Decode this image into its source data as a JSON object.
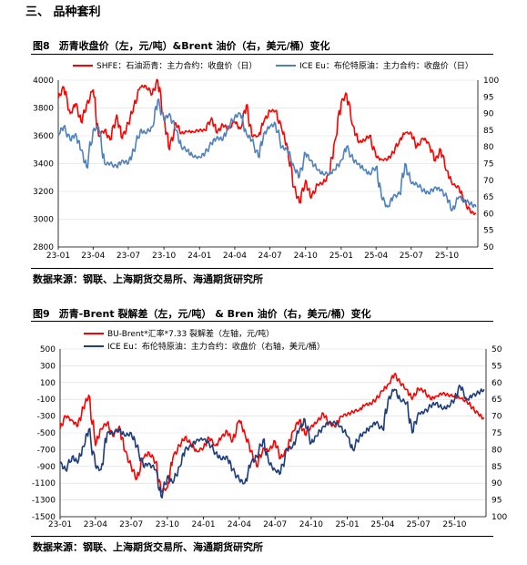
{
  "section_title": "三、 品种套利",
  "colors": {
    "red": "#ff0000",
    "blue1": "#4f81bd",
    "blue2": "#1f3d7a",
    "grid": "#d9d9d9"
  },
  "chart_data": [
    {
      "type": "line",
      "fig_label": "图8",
      "title": "沥青收盘价（左，元/吨）&Brent 油价（右，美元/桶）变化",
      "source": "数据来源：钢联、上海期货交易所、海通期货研究所",
      "x_ticks": [
        "23-01",
        "23-04",
        "23-07",
        "23-10",
        "24-01",
        "24-04",
        "24-07",
        "24-10",
        "25-01",
        "25-04",
        "25-07",
        "25-10"
      ],
      "x_range": [
        "2023-01-01",
        "2025-12-20"
      ],
      "y_left": {
        "ticks": [
          2800,
          3000,
          3200,
          3400,
          3600,
          3800,
          4000
        ],
        "range": [
          2800,
          4000
        ]
      },
      "y_right": {
        "ticks": [
          50,
          55,
          60,
          65,
          70,
          75,
          80,
          85,
          90,
          95,
          100
        ],
        "range": [
          50,
          100
        ]
      },
      "series": [
        {
          "name": "SHFE：石油沥青：主力合约：收盘价（日）",
          "axis": "left",
          "color": "#ff0000",
          "x": [
            "2023-01-01",
            "2023-01-15",
            "2023-02-01",
            "2023-02-15",
            "2023-03-01",
            "2023-03-15",
            "2023-04-01",
            "2023-04-15",
            "2023-05-01",
            "2023-05-15",
            "2023-06-01",
            "2023-06-15",
            "2023-07-01",
            "2023-07-15",
            "2023-08-01",
            "2023-08-15",
            "2023-09-01",
            "2023-09-15",
            "2023-10-01",
            "2023-10-15",
            "2023-11-01",
            "2023-11-15",
            "2023-12-01",
            "2023-12-15",
            "2024-01-01",
            "2024-01-15",
            "2024-02-01",
            "2024-02-15",
            "2024-03-01",
            "2024-03-15",
            "2024-04-01",
            "2024-04-15",
            "2024-05-01",
            "2024-05-15",
            "2024-06-01",
            "2024-06-15",
            "2024-07-01",
            "2024-07-15",
            "2024-08-01",
            "2024-08-15",
            "2024-09-01",
            "2024-09-15",
            "2024-10-01",
            "2024-10-15",
            "2024-11-01",
            "2024-11-15",
            "2024-12-01",
            "2024-12-15",
            "2025-01-01",
            "2025-01-15",
            "2025-02-01",
            "2025-02-15",
            "2025-03-01",
            "2025-03-15",
            "2025-04-01",
            "2025-04-15",
            "2025-05-01",
            "2025-05-15",
            "2025-06-01",
            "2025-06-15",
            "2025-07-01",
            "2025-07-15",
            "2025-08-01",
            "2025-08-15",
            "2025-09-01",
            "2025-09-15",
            "2025-10-01",
            "2025-10-15",
            "2025-11-01",
            "2025-11-15",
            "2025-12-01",
            "2025-12-15"
          ],
          "y": [
            3870,
            3950,
            3760,
            3830,
            3700,
            3820,
            3930,
            3600,
            3640,
            3570,
            3750,
            3580,
            3690,
            3810,
            3950,
            3960,
            3900,
            4000,
            3730,
            3500,
            3690,
            3620,
            3630,
            3630,
            3640,
            3640,
            3730,
            3620,
            3680,
            3650,
            3700,
            3650,
            3820,
            3600,
            3600,
            3700,
            3780,
            3780,
            3640,
            3520,
            3230,
            3120,
            3280,
            3150,
            3250,
            3260,
            3320,
            3560,
            3840,
            3900,
            3670,
            3550,
            3570,
            3600,
            3450,
            3430,
            3430,
            3480,
            3570,
            3620,
            3620,
            3520,
            3580,
            3550,
            3420,
            3500,
            3350,
            3250,
            3230,
            3130,
            3050,
            3040
          ]
        },
        {
          "name": "ICE Eu：布伦特原油：主力合约：收盘价（日）",
          "axis": "right",
          "color": "#4f81bd",
          "x": [
            "2023-01-01",
            "2023-01-15",
            "2023-02-01",
            "2023-02-15",
            "2023-03-01",
            "2023-03-15",
            "2023-04-01",
            "2023-04-15",
            "2023-05-01",
            "2023-05-15",
            "2023-06-01",
            "2023-06-15",
            "2023-07-01",
            "2023-07-15",
            "2023-08-01",
            "2023-08-15",
            "2023-09-01",
            "2023-09-15",
            "2023-10-01",
            "2023-10-15",
            "2023-11-01",
            "2023-11-15",
            "2023-12-01",
            "2023-12-15",
            "2024-01-01",
            "2024-01-15",
            "2024-02-01",
            "2024-02-15",
            "2024-03-01",
            "2024-03-15",
            "2024-04-01",
            "2024-04-15",
            "2024-05-01",
            "2024-05-15",
            "2024-06-01",
            "2024-06-15",
            "2024-07-01",
            "2024-07-15",
            "2024-08-01",
            "2024-08-15",
            "2024-09-01",
            "2024-09-15",
            "2024-10-01",
            "2024-10-15",
            "2024-11-01",
            "2024-11-15",
            "2024-12-01",
            "2024-12-15",
            "2025-01-01",
            "2025-01-15",
            "2025-02-01",
            "2025-02-15",
            "2025-03-01",
            "2025-03-15",
            "2025-04-01",
            "2025-04-15",
            "2025-05-01",
            "2025-05-15",
            "2025-06-01",
            "2025-06-15",
            "2025-07-01",
            "2025-07-15",
            "2025-08-01",
            "2025-08-15",
            "2025-09-01",
            "2025-09-15",
            "2025-10-01",
            "2025-10-15",
            "2025-11-01",
            "2025-11-15",
            "2025-12-01",
            "2025-12-15"
          ],
          "y": [
            84,
            86,
            82,
            84,
            79,
            74,
            85,
            86,
            75,
            75,
            74,
            76,
            75,
            79,
            85,
            84,
            86,
            94,
            88,
            90,
            85,
            80,
            79,
            77,
            77,
            78,
            81,
            83,
            82,
            86,
            89,
            90,
            84,
            82,
            77,
            84,
            86,
            87,
            80,
            79,
            74,
            71,
            78,
            76,
            73,
            72,
            72,
            73,
            76,
            80,
            76,
            75,
            73,
            72,
            74,
            65,
            62,
            65,
            66,
            75,
            69,
            69,
            67,
            66,
            68,
            67,
            65,
            61,
            65,
            64,
            63,
            62
          ]
        }
      ]
    },
    {
      "type": "line",
      "fig_label": "图9",
      "title": "沥青-Brent 裂解差（左，元/吨） & Bren 油价（右，美元/桶）变化",
      "source": "数据来源：钢联、上海期货交易所、海通期货研究所",
      "x_ticks": [
        "23-01",
        "23-04",
        "23-07",
        "23-10",
        "24-01",
        "24-04",
        "24-07",
        "24-10",
        "25-01",
        "25-04",
        "25-07",
        "25-10"
      ],
      "x_range": [
        "2023-01-01",
        "2025-12-20"
      ],
      "y_left": {
        "ticks": [
          -1500,
          -1300,
          -1100,
          -900,
          -700,
          -500,
          -300,
          -100,
          100,
          300,
          500
        ],
        "range": [
          -1500,
          500
        ]
      },
      "y_right": {
        "ticks": [
          50,
          55,
          60,
          65,
          70,
          75,
          80,
          85,
          90,
          95,
          100
        ],
        "range": [
          100,
          50
        ],
        "reversed": true
      },
      "series": [
        {
          "name": "BU-Brent*汇率*7.33 裂解差（左轴，元/吨）",
          "axis": "left",
          "color": "#ff0000",
          "x": [
            "2023-01-01",
            "2023-01-15",
            "2023-02-01",
            "2023-02-15",
            "2023-03-01",
            "2023-03-15",
            "2023-04-01",
            "2023-04-15",
            "2023-05-01",
            "2023-05-15",
            "2023-06-01",
            "2023-06-15",
            "2023-07-01",
            "2023-07-15",
            "2023-08-01",
            "2023-08-15",
            "2023-09-01",
            "2023-09-15",
            "2023-10-01",
            "2023-10-15",
            "2023-11-01",
            "2023-11-15",
            "2023-12-01",
            "2023-12-15",
            "2024-01-01",
            "2024-01-15",
            "2024-02-01",
            "2024-02-15",
            "2024-03-01",
            "2024-03-15",
            "2024-04-01",
            "2024-04-15",
            "2024-05-01",
            "2024-05-15",
            "2024-06-01",
            "2024-06-15",
            "2024-07-01",
            "2024-07-15",
            "2024-08-01",
            "2024-08-15",
            "2024-09-01",
            "2024-09-15",
            "2024-10-01",
            "2024-10-15",
            "2024-11-01",
            "2024-11-15",
            "2024-12-01",
            "2024-12-15",
            "2025-01-01",
            "2025-01-15",
            "2025-02-01",
            "2025-02-15",
            "2025-03-01",
            "2025-03-15",
            "2025-04-01",
            "2025-04-15",
            "2025-05-01",
            "2025-05-15",
            "2025-06-01",
            "2025-06-15",
            "2025-07-01",
            "2025-07-15",
            "2025-08-01",
            "2025-08-15",
            "2025-09-01",
            "2025-09-15",
            "2025-10-01",
            "2025-10-15",
            "2025-11-01",
            "2025-11-15",
            "2025-12-01",
            "2025-12-15"
          ],
          "y": [
            -450,
            -300,
            -350,
            -420,
            -200,
            -50,
            -650,
            -450,
            -380,
            -540,
            -420,
            -720,
            -900,
            -1050,
            -800,
            -730,
            -850,
            -1200,
            -1150,
            -800,
            -650,
            -550,
            -640,
            -720,
            -680,
            -560,
            -650,
            -560,
            -480,
            -600,
            -350,
            -500,
            -720,
            -900,
            -680,
            -720,
            -600,
            -800,
            -700,
            -480,
            -350,
            -520,
            -420,
            -380,
            -270,
            -380,
            -430,
            -300,
            -280,
            -250,
            -220,
            -170,
            -150,
            -100,
            0,
            80,
            200,
            100,
            20,
            -100,
            30,
            0,
            -100,
            -60,
            -30,
            -50,
            -60,
            -90,
            -120,
            -200,
            -280,
            -330
          ]
        },
        {
          "name": "ICE Eu：布伦特原油：主力合约：收盘价（右轴，美元/桶）",
          "axis": "right",
          "color": "#1f3d7a",
          "x": [
            "2023-01-01",
            "2023-01-15",
            "2023-02-01",
            "2023-02-15",
            "2023-03-01",
            "2023-03-15",
            "2023-04-01",
            "2023-04-15",
            "2023-05-01",
            "2023-05-15",
            "2023-06-01",
            "2023-06-15",
            "2023-07-01",
            "2023-07-15",
            "2023-08-01",
            "2023-08-15",
            "2023-09-01",
            "2023-09-15",
            "2023-10-01",
            "2023-10-15",
            "2023-11-01",
            "2023-11-15",
            "2023-12-01",
            "2023-12-15",
            "2024-01-01",
            "2024-01-15",
            "2024-02-01",
            "2024-02-15",
            "2024-03-01",
            "2024-03-15",
            "2024-04-01",
            "2024-04-15",
            "2024-05-01",
            "2024-05-15",
            "2024-06-01",
            "2024-06-15",
            "2024-07-01",
            "2024-07-15",
            "2024-08-01",
            "2024-08-15",
            "2024-09-01",
            "2024-09-15",
            "2024-10-01",
            "2024-10-15",
            "2024-11-01",
            "2024-11-15",
            "2024-12-01",
            "2024-12-15",
            "2025-01-01",
            "2025-01-15",
            "2025-02-01",
            "2025-02-15",
            "2025-03-01",
            "2025-03-15",
            "2025-04-01",
            "2025-04-15",
            "2025-05-01",
            "2025-05-15",
            "2025-06-01",
            "2025-06-15",
            "2025-07-01",
            "2025-07-15",
            "2025-08-01",
            "2025-08-15",
            "2025-09-01",
            "2025-09-15",
            "2025-10-01",
            "2025-10-15",
            "2025-11-01",
            "2025-11-15",
            "2025-12-01",
            "2025-12-15"
          ],
          "y": [
            84,
            86,
            82,
            84,
            79,
            74,
            85,
            86,
            75,
            75,
            74,
            76,
            75,
            79,
            85,
            84,
            86,
            94,
            88,
            90,
            85,
            80,
            79,
            77,
            77,
            78,
            81,
            83,
            82,
            86,
            89,
            90,
            84,
            82,
            77,
            84,
            86,
            87,
            80,
            79,
            74,
            71,
            78,
            76,
            73,
            72,
            72,
            73,
            76,
            80,
            76,
            75,
            73,
            72,
            74,
            65,
            62,
            65,
            66,
            75,
            69,
            69,
            67,
            66,
            68,
            67,
            65,
            61,
            65,
            64,
            63,
            62
          ]
        }
      ]
    }
  ]
}
